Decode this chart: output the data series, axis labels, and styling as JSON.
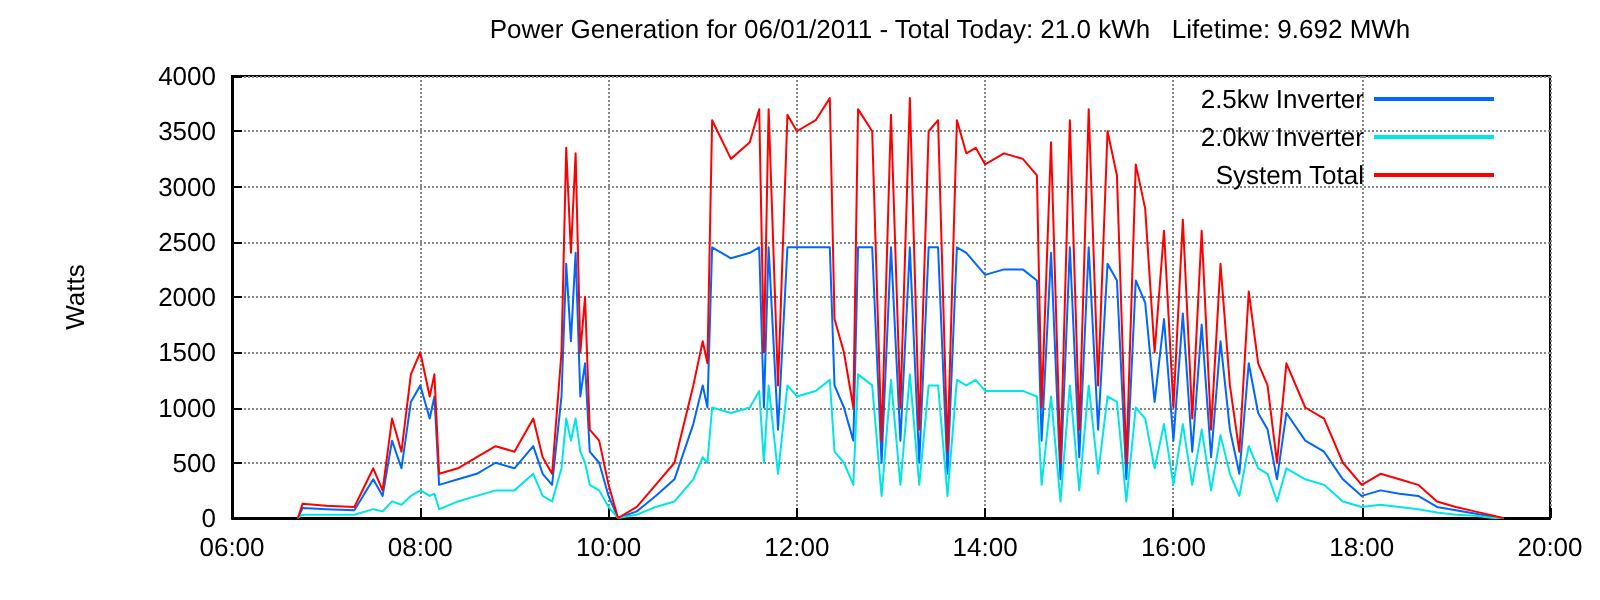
{
  "chart_data": {
    "type": "line",
    "title": "Power Generation for 06/01/2011 - Total Today: 21.0 kWh   Lifetime: 9.692 MWh",
    "ylabel": "Watts",
    "x": [
      6.7,
      6.75,
      7.0,
      7.3,
      7.5,
      7.6,
      7.7,
      7.8,
      7.9,
      8.0,
      8.1,
      8.15,
      8.2,
      8.4,
      8.6,
      8.8,
      9.0,
      9.2,
      9.3,
      9.4,
      9.5,
      9.55,
      9.6,
      9.65,
      9.7,
      9.75,
      9.8,
      9.9,
      10.0,
      10.1,
      10.3,
      10.5,
      10.7,
      10.9,
      11.0,
      11.05,
      11.1,
      11.3,
      11.5,
      11.6,
      11.65,
      11.7,
      11.8,
      11.9,
      12.0,
      12.2,
      12.35,
      12.4,
      12.5,
      12.6,
      12.65,
      12.8,
      12.9,
      13.0,
      13.1,
      13.2,
      13.3,
      13.4,
      13.5,
      13.6,
      13.7,
      13.8,
      13.9,
      14.0,
      14.2,
      14.4,
      14.55,
      14.6,
      14.7,
      14.8,
      14.9,
      15.0,
      15.1,
      15.2,
      15.3,
      15.4,
      15.5,
      15.6,
      15.7,
      15.8,
      15.9,
      16.0,
      16.1,
      16.2,
      16.3,
      16.4,
      16.5,
      16.6,
      16.7,
      16.8,
      16.9,
      17.0,
      17.1,
      17.2,
      17.4,
      17.6,
      17.8,
      18.0,
      18.2,
      18.4,
      18.6,
      18.8,
      19.0,
      19.2,
      19.4,
      19.5
    ],
    "series": [
      {
        "name": "2.5kw Inverter",
        "color": "#0066ff",
        "values": [
          0,
          90,
          80,
          70,
          350,
          200,
          700,
          450,
          1050,
          1200,
          900,
          1100,
          300,
          350,
          400,
          500,
          450,
          650,
          400,
          300,
          1100,
          2300,
          1600,
          2400,
          1100,
          1400,
          600,
          500,
          200,
          0,
          60,
          200,
          350,
          850,
          1200,
          1000,
          2450,
          2350,
          2400,
          2450,
          1000,
          2450,
          800,
          2450,
          2450,
          2450,
          2450,
          1200,
          1000,
          700,
          2450,
          2450,
          500,
          2450,
          700,
          2450,
          500,
          2450,
          2450,
          400,
          2450,
          2400,
          2300,
          2200,
          2250,
          2250,
          2150,
          700,
          2400,
          350,
          2450,
          550,
          2450,
          800,
          2300,
          2150,
          350,
          2150,
          1950,
          1050,
          1800,
          700,
          1850,
          600,
          1750,
          550,
          1600,
          800,
          400,
          1400,
          950,
          800,
          350,
          950,
          700,
          600,
          350,
          200,
          250,
          220,
          200,
          100,
          70,
          40,
          10,
          0
        ]
      },
      {
        "name": "2.0kw Inverter",
        "color": "#00e5e5",
        "values": [
          0,
          30,
          30,
          30,
          80,
          60,
          150,
          120,
          200,
          250,
          200,
          220,
          80,
          150,
          200,
          250,
          250,
          400,
          200,
          150,
          450,
          900,
          700,
          900,
          600,
          500,
          300,
          250,
          100,
          0,
          30,
          100,
          150,
          350,
          550,
          500,
          1000,
          950,
          1000,
          1150,
          500,
          1200,
          400,
          1200,
          1100,
          1150,
          1250,
          600,
          500,
          300,
          1300,
          1200,
          200,
          1250,
          300,
          1300,
          300,
          1200,
          1200,
          200,
          1250,
          1200,
          1250,
          1150,
          1150,
          1150,
          1100,
          300,
          1100,
          150,
          1200,
          250,
          1200,
          400,
          1100,
          1050,
          150,
          1000,
          900,
          450,
          850,
          300,
          850,
          300,
          800,
          250,
          750,
          400,
          200,
          650,
          450,
          400,
          150,
          450,
          350,
          300,
          150,
          100,
          120,
          100,
          80,
          50,
          30,
          20,
          0,
          0
        ]
      },
      {
        "name": "System Total",
        "color": "#ff0000",
        "values": [
          0,
          130,
          110,
          100,
          450,
          250,
          900,
          600,
          1300,
          1500,
          1100,
          1300,
          400,
          450,
          550,
          650,
          600,
          900,
          550,
          400,
          1500,
          3350,
          2400,
          3300,
          1500,
          2000,
          800,
          700,
          300,
          0,
          100,
          300,
          500,
          1200,
          1600,
          1400,
          3600,
          3250,
          3400,
          3700,
          1500,
          3700,
          1200,
          3650,
          3500,
          3600,
          3800,
          1800,
          1500,
          1000,
          3700,
          3500,
          700,
          3650,
          1000,
          3800,
          800,
          3500,
          3600,
          600,
          3600,
          3300,
          3350,
          3200,
          3300,
          3250,
          3100,
          1000,
          3400,
          500,
          3600,
          800,
          3700,
          1200,
          3500,
          3100,
          500,
          3200,
          2800,
          1500,
          2600,
          1000,
          2700,
          900,
          2600,
          800,
          2300,
          1200,
          600,
          2050,
          1400,
          1200,
          500,
          1400,
          1000,
          900,
          500,
          300,
          400,
          350,
          300,
          150,
          100,
          60,
          20,
          0
        ]
      }
    ],
    "xlim": [
      6,
      20
    ],
    "xticks": [
      {
        "value": 6,
        "label": "06:00"
      },
      {
        "value": 8,
        "label": "08:00"
      },
      {
        "value": 10,
        "label": "10:00"
      },
      {
        "value": 12,
        "label": "12:00"
      },
      {
        "value": 14,
        "label": "14:00"
      },
      {
        "value": 16,
        "label": "16:00"
      },
      {
        "value": 18,
        "label": "18:00"
      },
      {
        "value": 20,
        "label": "20:00"
      }
    ],
    "ylim": [
      0,
      4000
    ],
    "yticks": [
      0,
      500,
      1000,
      1500,
      2000,
      2500,
      3000,
      3500,
      4000
    ],
    "grid": true,
    "legend": "top right",
    "marker": "none",
    "line_style": "solid"
  }
}
